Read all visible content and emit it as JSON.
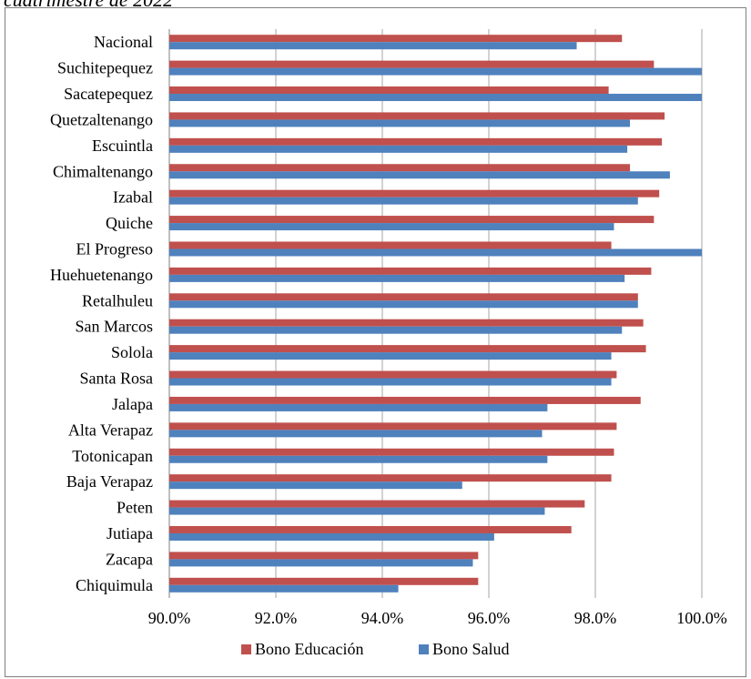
{
  "caption": "cuatrimestre de 2022",
  "chart_data": {
    "type": "bar",
    "orientation": "horizontal",
    "categories": [
      "Nacional",
      "Suchitepequez",
      "Sacatepequez",
      "Quetzaltenango",
      "Escuintla",
      "Chimaltenango",
      "Izabal",
      "Quiche",
      "El Progreso",
      "Huehuetenango",
      "Retalhuleu",
      "San Marcos",
      "Solola",
      "Santa Rosa",
      "Jalapa",
      "Alta Verapaz",
      "Totonicapan",
      "Baja Verapaz",
      "Peten",
      "Jutiapa",
      "Zacapa",
      "Chiquimula"
    ],
    "series": [
      {
        "name": "Bono Educación",
        "color": "#c0504d",
        "values": [
          98.5,
          99.1,
          98.25,
          99.3,
          99.25,
          98.65,
          99.2,
          99.1,
          98.3,
          99.05,
          98.8,
          98.9,
          98.95,
          98.4,
          98.85,
          98.4,
          98.35,
          98.3,
          97.8,
          97.55,
          95.8,
          95.8
        ]
      },
      {
        "name": "Bono Salud",
        "color": "#4f81bd",
        "values": [
          97.65,
          100.0,
          100.0,
          98.65,
          98.6,
          99.4,
          98.8,
          98.35,
          100.0,
          98.55,
          98.8,
          98.5,
          98.3,
          98.3,
          97.1,
          97.0,
          97.1,
          95.5,
          97.05,
          96.1,
          95.7,
          94.3
        ]
      }
    ],
    "xlim": [
      90.0,
      100.0
    ],
    "xticks": [
      "90.0%",
      "92.0%",
      "94.0%",
      "96.0%",
      "98.0%",
      "100.0%"
    ],
    "xtick_values": [
      90,
      92,
      94,
      96,
      98,
      100
    ],
    "grid": "vertical",
    "legend": "bottom"
  }
}
